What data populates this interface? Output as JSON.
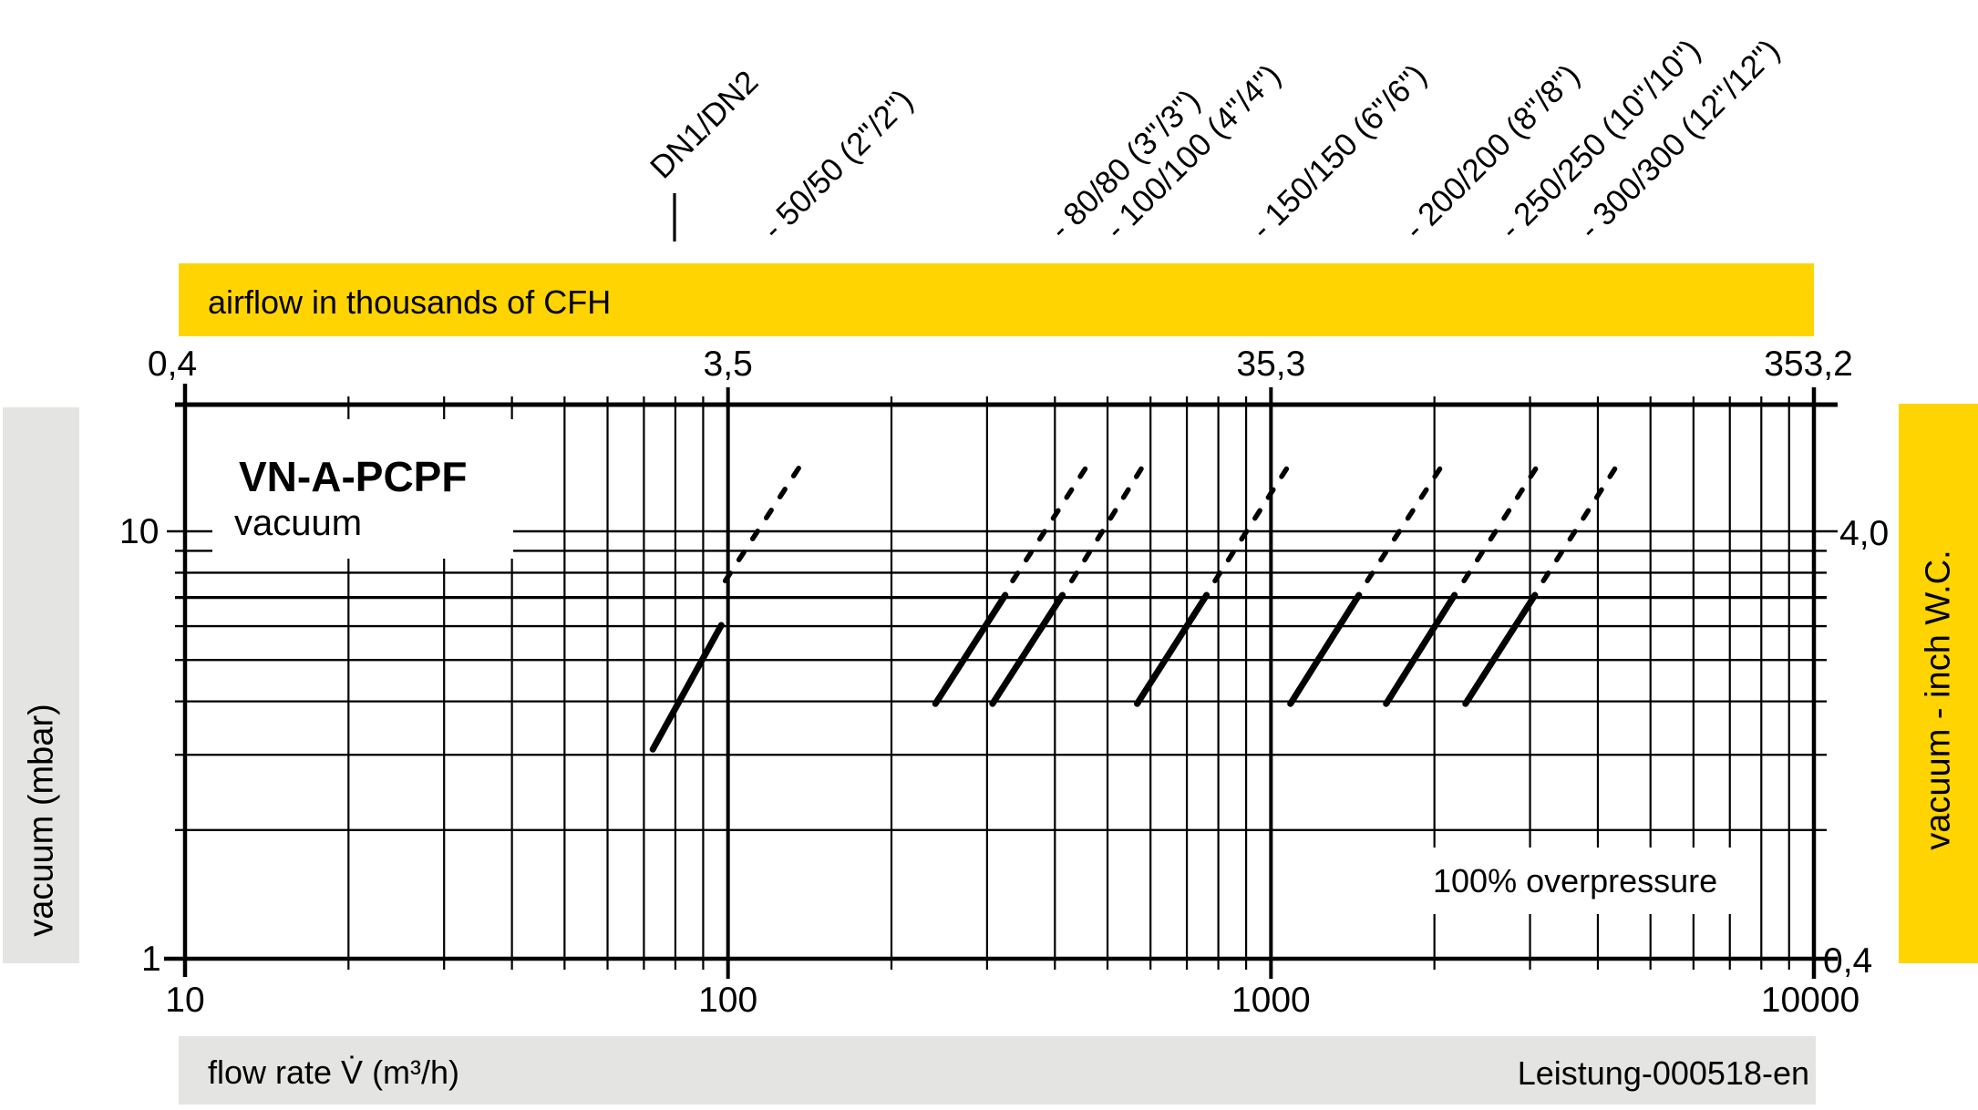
{
  "accent_yellow": "#FFD400",
  "panel_gray": "#E4E4E3",
  "line_color": "#000000",
  "chart_data": {
    "type": "line",
    "title": "VN-A-PCPF",
    "subtitle": "vacuum",
    "annotation": "100% overpressure",
    "doc_ref": "Leistung-000518-en",
    "x_axis": {
      "label": "flow rate V̇ (m³/h)",
      "scale": "log",
      "min": 10,
      "max": 10000,
      "major_ticks": [
        "10",
        "100",
        "1000",
        "10000"
      ],
      "major_values": [
        10,
        100,
        1000,
        10000
      ],
      "minor_multiples": [
        2,
        3,
        4,
        5,
        6,
        7,
        8,
        9
      ]
    },
    "x_axis_top": {
      "label": "airflow in thousands of CFH",
      "tick_labels": [
        "0,4",
        "3,5",
        "35,3",
        "353,2"
      ],
      "tick_values_m3h": [
        10,
        100,
        1000,
        10000
      ]
    },
    "y_axis": {
      "label": "vacuum (mbar)",
      "scale": "log",
      "min": 1,
      "max": 20,
      "tick_labels": [
        "10",
        "1"
      ],
      "tick_values": [
        10,
        1
      ],
      "gridline_values": [
        2,
        3,
        4,
        5,
        6,
        7,
        8,
        9,
        10
      ]
    },
    "y_axis_right": {
      "label": "vacuum  - inch W.C.",
      "tick_labels": [
        "4,0",
        "0,4"
      ],
      "tick_values_mbar": [
        10,
        1
      ]
    },
    "header": "DN1/DN2",
    "series": [
      {
        "name": "50/50 (2\"/2\")",
        "label": "- 50/50 (2\"/2\")",
        "solid": [
          [
            72.7,
            3.09
          ],
          [
            97.2,
            6.03
          ]
        ],
        "dashed": [
          [
            99.9,
            7.82
          ],
          [
            133.5,
            13.76
          ]
        ]
      },
      {
        "name": "80/80 (3\"/3\")",
        "label": "- 80/80 (3\"/3\")",
        "solid": [
          [
            241,
            3.95
          ],
          [
            324,
            7.09
          ]
        ],
        "dashed": [
          [
            338,
            7.82
          ],
          [
            450,
            13.71
          ]
        ]
      },
      {
        "name": "100/100 (4\"/4\")",
        "label": "- 100/100 (4\"/4\")",
        "solid": [
          [
            307,
            3.95
          ],
          [
            413,
            7.09
          ]
        ],
        "dashed": [
          [
            434,
            7.82
          ],
          [
            571,
            13.71
          ]
        ]
      },
      {
        "name": "150/150 (6\"/6\")",
        "label": "- 150/150 (6\"/6\")",
        "solid": [
          [
            567,
            3.95
          ],
          [
            761,
            7.09
          ]
        ],
        "dashed": [
          [
            797,
            7.82
          ],
          [
            1057,
            13.71
          ]
        ]
      },
      {
        "name": "200/200 (8\"/8\")",
        "label": "- 200/200 (8\"/8\")",
        "solid": [
          [
            1086,
            3.95
          ],
          [
            1452,
            7.09
          ]
        ],
        "dashed": [
          [
            1521,
            7.82
          ],
          [
            2025,
            13.71
          ]
        ]
      },
      {
        "name": "250/250 (10\"/10\")",
        "label": "- 250/250 (10\"/10\")",
        "solid": [
          [
            1630,
            3.95
          ],
          [
            2178,
            7.09
          ]
        ],
        "dashed": [
          [
            2291,
            7.82
          ],
          [
            3040,
            13.71
          ]
        ]
      },
      {
        "name": "300/300 (12\"/12\")",
        "label": "- 300/300 (12\"/12\")",
        "solid": [
          [
            2282,
            3.95
          ],
          [
            3063,
            7.09
          ]
        ],
        "dashed": [
          [
            3208,
            7.82
          ],
          [
            4254,
            13.71
          ]
        ]
      }
    ]
  }
}
